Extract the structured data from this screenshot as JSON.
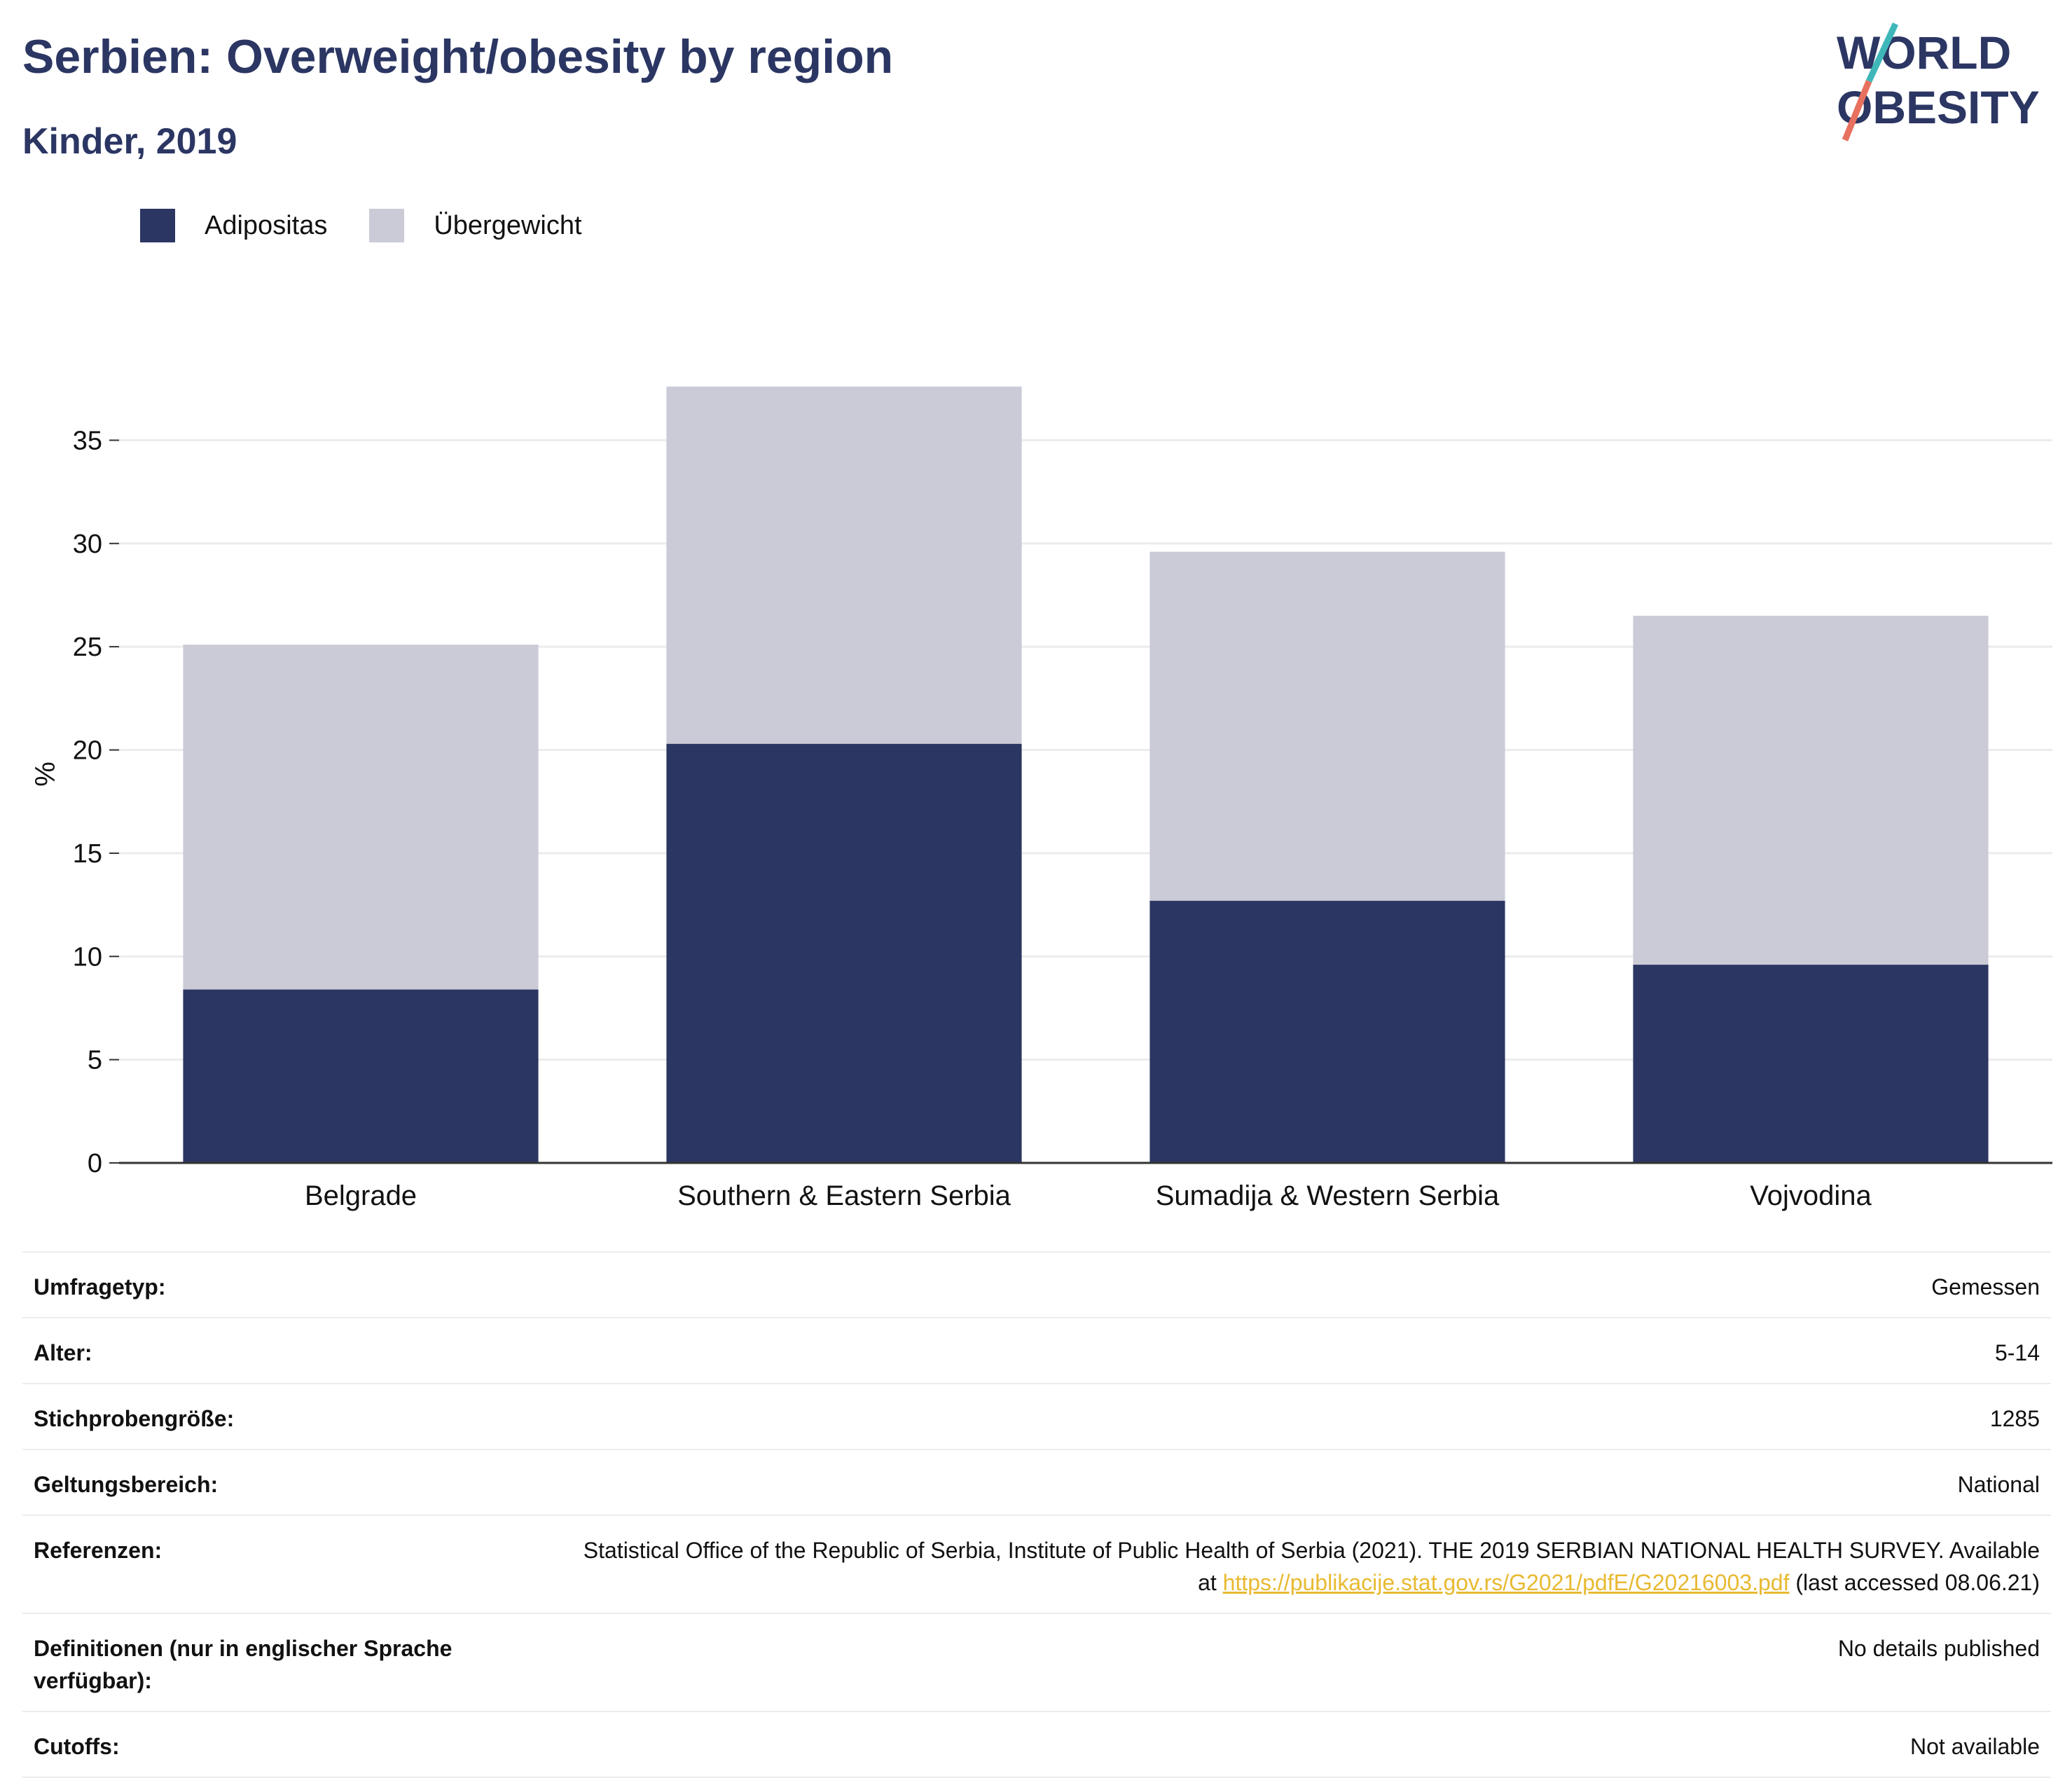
{
  "header": {
    "title": "Serbien: Overweight/obesity by region",
    "subtitle": "Kinder, 2019"
  },
  "logo": {
    "line1": "WORLD",
    "line2": "OBESITY",
    "icon": "slash-logo-icon"
  },
  "colors": {
    "obesity": "#2b3663",
    "overweight": "#cacbd7",
    "axis": "#333333",
    "grid": "#ececec",
    "link": "#e8b931"
  },
  "chart_data": {
    "type": "bar",
    "stacked": true,
    "categories": [
      "Belgrade",
      "Southern & Eastern Serbia",
      "Sumadija & Western Serbia",
      "Vojvodina"
    ],
    "series": [
      {
        "name": "Adipositas",
        "values": [
          8.4,
          20.3,
          12.7,
          9.6
        ]
      },
      {
        "name": "Übergewicht",
        "values": [
          16.7,
          17.3,
          16.9,
          16.9
        ]
      }
    ],
    "xlabel": "",
    "ylabel": "%",
    "ylim": [
      0,
      38
    ],
    "yticks": [
      0,
      5,
      10,
      15,
      20,
      25,
      30,
      35
    ],
    "grid": true,
    "legend": "top-left"
  },
  "meta": [
    {
      "label": "Umfragetyp:",
      "value": "Gemessen"
    },
    {
      "label": "Alter:",
      "value": "5-14"
    },
    {
      "label": "Stichprobengröße:",
      "value": "1285"
    },
    {
      "label": "Geltungsbereich:",
      "value": "National"
    },
    {
      "label": "Definitionen (nur in englischer Sprache verfügbar):",
      "value": "No details published"
    },
    {
      "label": "Cutoffs:",
      "value": "Not available"
    }
  ],
  "reference": {
    "label": "Referenzen:",
    "text_before": "Statistical Office of the Republic of Serbia, Institute of Public Health of Serbia (2021). THE 2019 SERBIAN NATIONAL HEALTH SURVEY. Available at ",
    "link": "https://publikacije.stat.gov.rs/G2021/pdfE/G20216003.pdf",
    "text_after": " (last accessed 08.06.21)"
  }
}
